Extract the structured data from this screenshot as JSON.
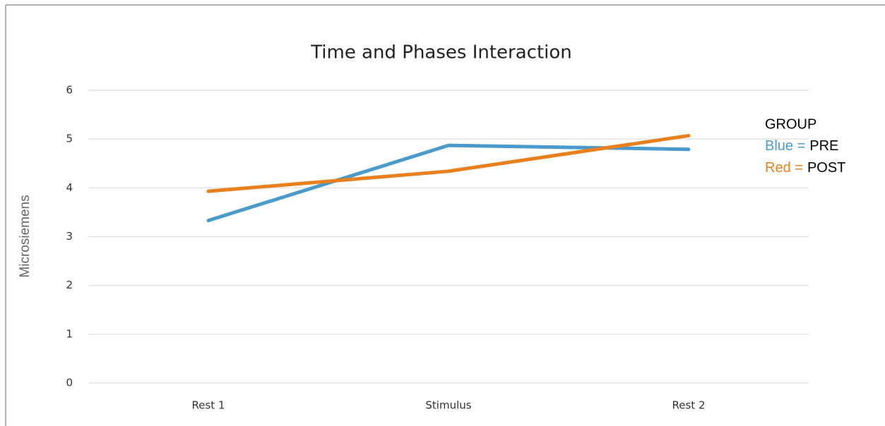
{
  "chart_data": {
    "type": "line",
    "title": "Time and Phases Interaction",
    "y_label": "Microsiemens",
    "categories": [
      "Rest 1",
      "Stimulus",
      "Rest 2"
    ],
    "series": [
      {
        "name": "PRE",
        "color_label": "Blue =",
        "color": "#4a9acb",
        "values": [
          3.33,
          4.87,
          4.79
        ]
      },
      {
        "name": "POST",
        "color_label": "Red =",
        "color": "#e8801e",
        "values": [
          3.93,
          4.34,
          5.07
        ]
      }
    ],
    "legend_title": "GROUP",
    "ylim": [
      0,
      6
    ],
    "yticks": [
      0,
      1,
      2,
      3,
      4,
      5,
      6
    ],
    "grid": true,
    "legend_position": "right"
  }
}
